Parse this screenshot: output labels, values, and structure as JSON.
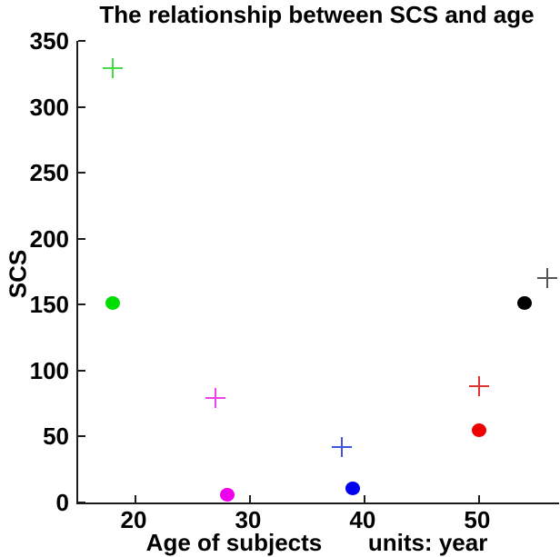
{
  "figure": {
    "title": "The relationship between SCS and age",
    "ylabel": "SCS",
    "xlabel": "Age of subjects       units: year"
  },
  "chart_data": {
    "type": "scatter",
    "title": "The relationship between SCS and age",
    "xlabel": "Age of subjects       units: year",
    "ylabel": "SCS",
    "x_units": "year",
    "xlim": [
      15,
      57
    ],
    "ylim": [
      0,
      350
    ],
    "xticks": [
      20,
      30,
      40,
      50
    ],
    "yticks": [
      0,
      50,
      100,
      150,
      200,
      250,
      300,
      350
    ],
    "grid": false,
    "legend_position": "none",
    "axis_color": "#1c1c1c",
    "points": [
      {
        "x": 18,
        "y": 329,
        "marker": "plus",
        "color": "#44DD44"
      },
      {
        "x": 18,
        "y": 151,
        "marker": "dot",
        "color": "#00DD00"
      },
      {
        "x": 27,
        "y": 79,
        "marker": "plus",
        "color": "#EE44EE"
      },
      {
        "x": 28,
        "y": 6,
        "marker": "dot",
        "color": "#EE00EE"
      },
      {
        "x": 38,
        "y": 42,
        "marker": "plus",
        "color": "#4455DD"
      },
      {
        "x": 39,
        "y": 11,
        "marker": "dot",
        "color": "#0000EE"
      },
      {
        "x": 50,
        "y": 88,
        "marker": "plus",
        "color": "#DD3333"
      },
      {
        "x": 50,
        "y": 55,
        "marker": "dot",
        "color": "#EE0000"
      },
      {
        "x": 54,
        "y": 151,
        "marker": "dot",
        "color": "#000000"
      },
      {
        "x": 56,
        "y": 170,
        "marker": "plus",
        "color": "#555555"
      }
    ]
  }
}
